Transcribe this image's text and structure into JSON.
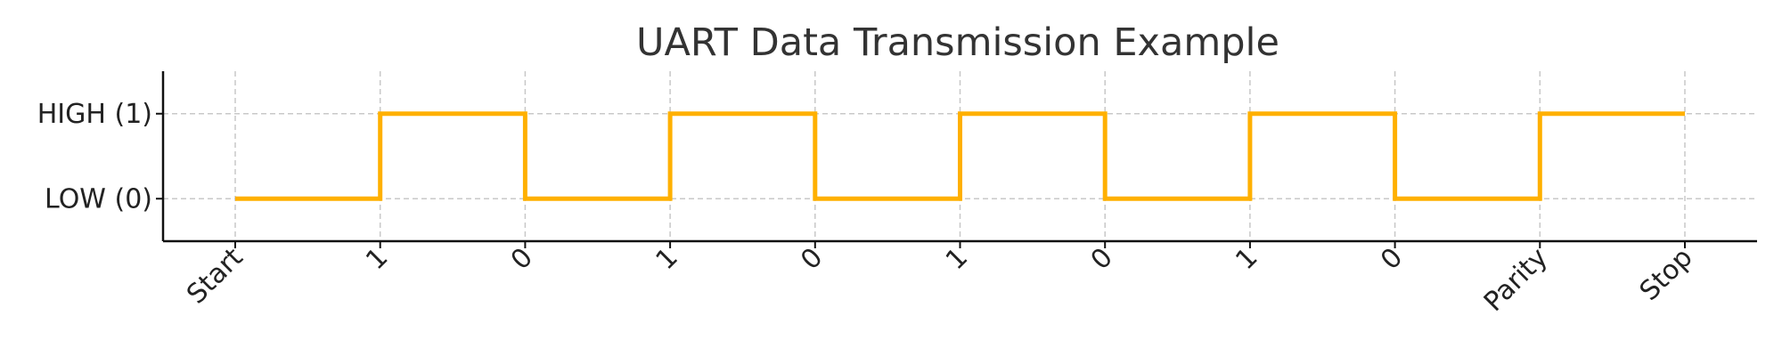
{
  "chart_data": {
    "type": "line",
    "step": "post",
    "title": "UART Data Transmission Example",
    "xlabel": "",
    "ylabel": "",
    "categories": [
      "Start",
      "1",
      "0",
      "1",
      "0",
      "1",
      "0",
      "1",
      "0",
      "Parity",
      "Stop"
    ],
    "series": [
      {
        "values": [
          0,
          1,
          0,
          1,
          0,
          1,
          0,
          1,
          0,
          1,
          1
        ]
      }
    ],
    "y_ticks": [
      {
        "value": 0,
        "label": "LOW (0)"
      },
      {
        "value": 1,
        "label": "HIGH (1)"
      }
    ],
    "ylim": [
      -0.5,
      1.5
    ],
    "grid": true,
    "legend": "none",
    "colors": {
      "signal": "#FFB000"
    }
  }
}
